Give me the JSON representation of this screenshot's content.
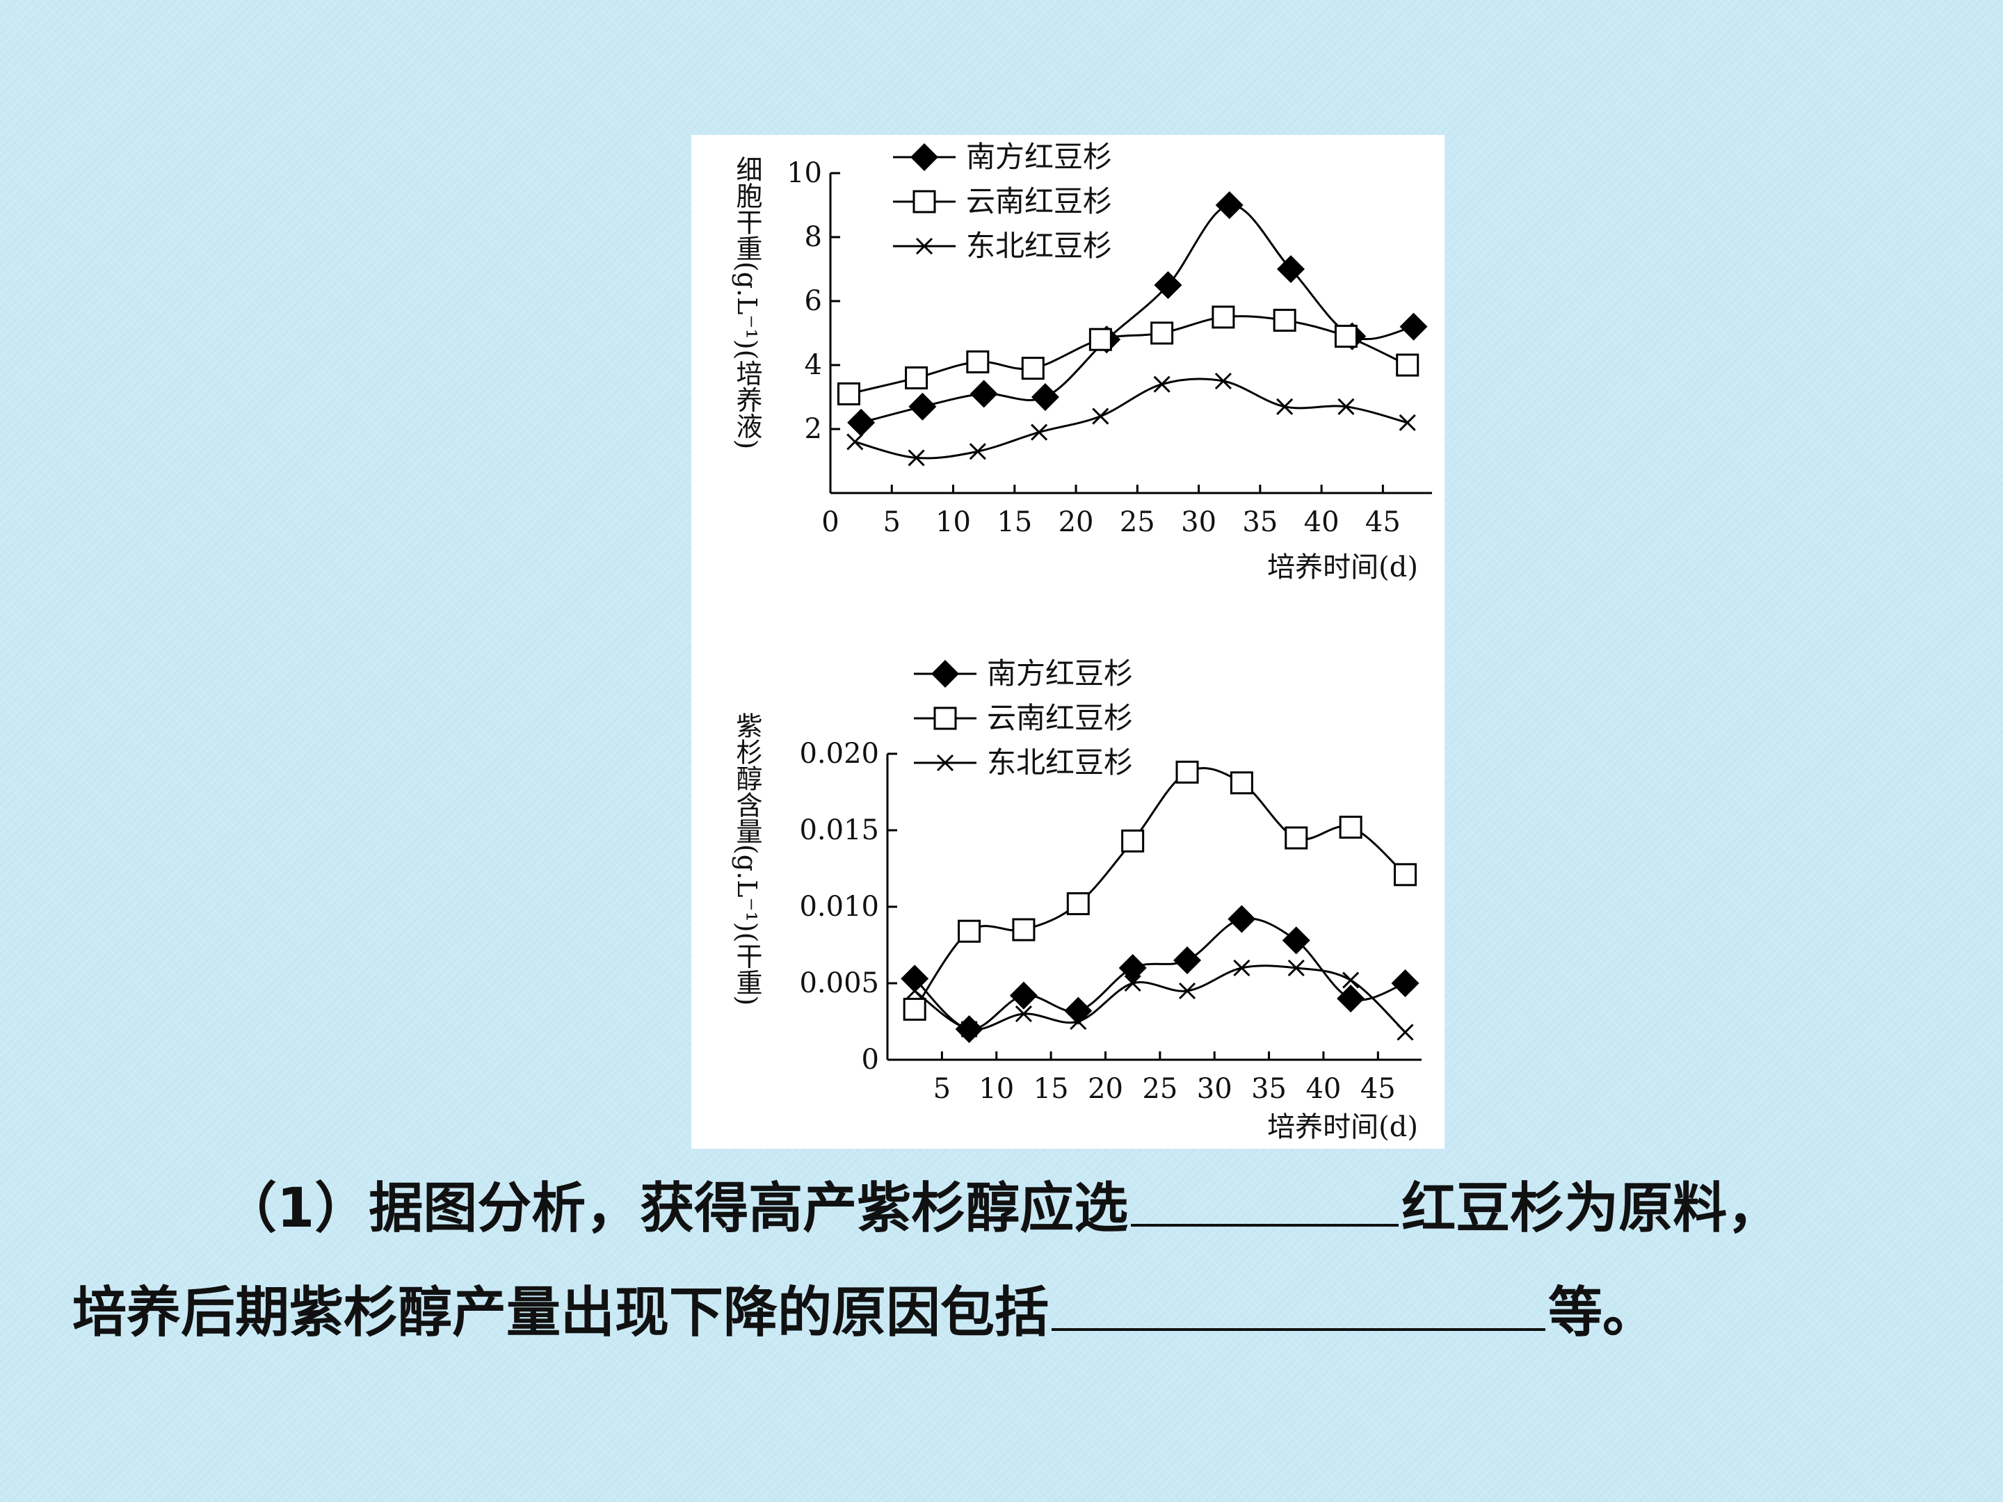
{
  "chart_data": [
    {
      "type": "line",
      "ylabel": "细胞干重(g.L⁻¹)(培养液)",
      "xlabel": "培养时间(d)",
      "ylim": [
        0,
        10
      ],
      "xlim": [
        0,
        49
      ],
      "yticks": [
        "2",
        "4",
        "6",
        "8",
        "10"
      ],
      "xticks": [
        "0",
        "5",
        "10",
        "15",
        "20",
        "25",
        "30",
        "35",
        "40",
        "45"
      ],
      "legend_position": "top",
      "grid": false,
      "series": [
        {
          "name": "南方红豆杉",
          "marker": "diamond-filled",
          "x": [
            2.5,
            7.5,
            12.5,
            17.5,
            22.5,
            27.5,
            32.5,
            37.5,
            42.5,
            47.5
          ],
          "y": [
            2.2,
            2.7,
            3.1,
            3.0,
            4.8,
            6.5,
            9.0,
            7.0,
            4.9,
            5.2
          ]
        },
        {
          "name": "云南红豆杉",
          "marker": "square-open",
          "x": [
            1.5,
            7,
            12,
            16.5,
            22,
            27,
            32,
            37,
            42,
            47
          ],
          "y": [
            3.1,
            3.6,
            4.1,
            3.9,
            4.8,
            5.0,
            5.5,
            5.4,
            4.9,
            4.0
          ]
        },
        {
          "name": "东北红豆杉",
          "marker": "x",
          "x": [
            2,
            7,
            12,
            17,
            22,
            27,
            32,
            37,
            42,
            47
          ],
          "y": [
            1.6,
            1.1,
            1.3,
            1.9,
            2.4,
            3.4,
            3.5,
            2.7,
            2.7,
            2.2
          ]
        }
      ]
    },
    {
      "type": "line",
      "ylabel": "紫杉醇含量(g.L⁻¹)(干重)",
      "xlabel": "培养时间(d)",
      "ylim": [
        0,
        0.02
      ],
      "xlim": [
        0,
        49
      ],
      "yticks": [
        "0",
        "0.005",
        "0.010",
        "0.015",
        "0.020"
      ],
      "xticks": [
        "5",
        "10",
        "15",
        "20",
        "25",
        "30",
        "35",
        "40",
        "45"
      ],
      "legend_position": "top",
      "grid": false,
      "series": [
        {
          "name": "南方红豆杉",
          "marker": "diamond-filled",
          "x": [
            2.5,
            7.5,
            12.5,
            17.5,
            22.5,
            27.5,
            32.5,
            37.5,
            42.5,
            47.5
          ],
          "y": [
            0.0053,
            0.002,
            0.0042,
            0.0032,
            0.006,
            0.0065,
            0.0092,
            0.0078,
            0.004,
            0.005
          ]
        },
        {
          "name": "云南红豆杉",
          "marker": "square-open",
          "x": [
            2.5,
            7.5,
            12.5,
            17.5,
            22.5,
            27.5,
            32.5,
            37.5,
            42.5,
            47.5
          ],
          "y": [
            0.0033,
            0.0084,
            0.0085,
            0.0102,
            0.0143,
            0.0188,
            0.0181,
            0.0145,
            0.0152,
            0.0121
          ]
        },
        {
          "name": "东北红豆杉",
          "marker": "x",
          "x": [
            2.5,
            7.5,
            12.5,
            17.5,
            22.5,
            27.5,
            32.5,
            37.5,
            42.5,
            47.5
          ],
          "y": [
            0.0045,
            0.002,
            0.003,
            0.0025,
            0.005,
            0.0045,
            0.006,
            0.006,
            0.0052,
            0.0018
          ]
        }
      ]
    }
  ],
  "question": {
    "line1_before": "（1）据图分析，获得高产紫杉醇应选",
    "line1_after": "红豆杉为原料，",
    "line2_before": "培养后期紫杉醇产量出现下降的原因包括",
    "line2_after": "等。"
  }
}
